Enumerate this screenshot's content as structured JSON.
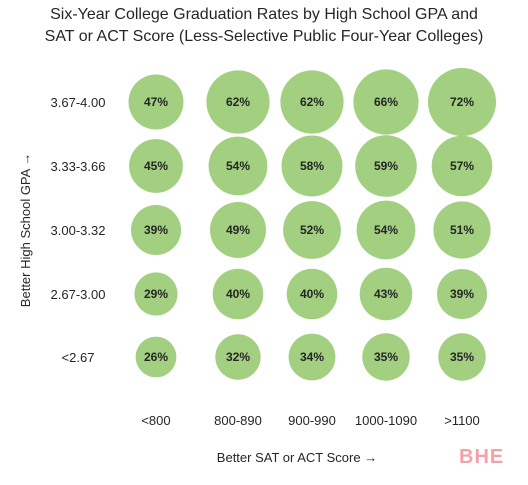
{
  "chart_data": {
    "type": "bubble",
    "title_lines": [
      "Six-Year College Graduation Rates by High School GPA and",
      "SAT or ACT Score (Less-Selective Public Four-Year Colleges)"
    ],
    "xlabel": "Better SAT or ACT Score →",
    "ylabel": "Better High School GPA →",
    "x_categories": [
      "<800",
      "800-890",
      "900-990",
      "1000-1090",
      ">1100"
    ],
    "y_categories": [
      "3.67-4.00",
      "3.33-3.66",
      "3.00-3.32",
      "2.67-3.00",
      "<2.67"
    ],
    "values": [
      [
        47,
        62,
        62,
        66,
        72
      ],
      [
        45,
        54,
        58,
        59,
        57
      ],
      [
        39,
        49,
        52,
        54,
        51
      ],
      [
        29,
        40,
        40,
        43,
        39
      ],
      [
        26,
        32,
        34,
        35,
        35
      ]
    ],
    "value_suffix": "%",
    "bubble_color": "#a2cf80"
  },
  "watermark": "BHE"
}
